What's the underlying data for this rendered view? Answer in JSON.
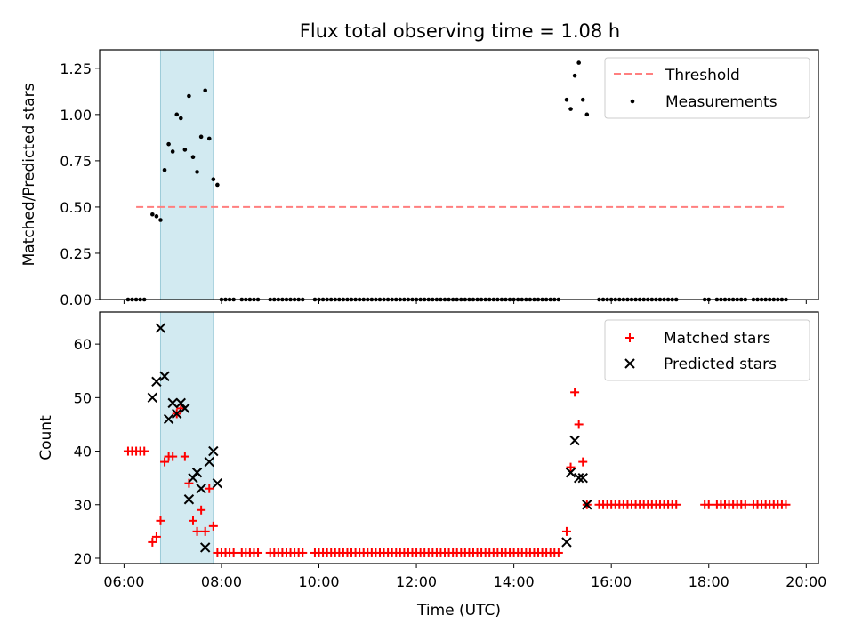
{
  "title": "Flux total observing time = 1.08 h",
  "chart_data": [
    {
      "type": "scatter",
      "ylabel": "Matched/Predicted stars",
      "xlim": [
        "05:30",
        "20:15"
      ],
      "ylim": [
        0,
        1.35
      ],
      "yticks": [
        "0.00",
        "0.25",
        "0.50",
        "0.75",
        "1.00",
        "1.25"
      ],
      "highlight_span": [
        "06:45",
        "07:50"
      ],
      "grid": false,
      "legend": "top-right",
      "threshold": {
        "name": "Threshold",
        "value": 0.5,
        "x_range": [
          "06:15",
          "19:35"
        ],
        "color": "#ff7f7f"
      },
      "series": [
        {
          "name": "Measurements",
          "color": "#000000",
          "points": [
            [
              "06:05",
              0
            ],
            [
              "06:10",
              0
            ],
            [
              "06:15",
              0
            ],
            [
              "06:20",
              0
            ],
            [
              "06:25",
              0
            ],
            [
              "06:35",
              0.46
            ],
            [
              "06:40",
              0.45
            ],
            [
              "06:45",
              0.43
            ],
            [
              "06:50",
              0.7
            ],
            [
              "06:55",
              0.84
            ],
            [
              "07:00",
              0.8
            ],
            [
              "07:05",
              1.0
            ],
            [
              "07:10",
              0.98
            ],
            [
              "07:15",
              0.81
            ],
            [
              "07:20",
              1.1
            ],
            [
              "07:25",
              0.77
            ],
            [
              "07:30",
              0.69
            ],
            [
              "07:35",
              0.88
            ],
            [
              "07:40",
              1.13
            ],
            [
              "07:45",
              0.87
            ],
            [
              "07:50",
              0.65
            ],
            [
              "07:55",
              0.62
            ],
            [
              "15:05",
              1.08
            ],
            [
              "15:10",
              1.03
            ],
            [
              "15:15",
              1.21
            ],
            [
              "15:20",
              1.28
            ],
            [
              "15:25",
              1.08
            ],
            [
              "15:30",
              1.0
            ]
          ],
          "zero_ranges": [
            [
              "08:00",
              "08:15"
            ],
            [
              "08:25",
              "08:45"
            ],
            [
              "09:00",
              "09:40"
            ],
            [
              "09:55",
              "14:55"
            ],
            [
              "15:45",
              "17:00"
            ],
            [
              "17:05",
              "17:20"
            ],
            [
              "17:55",
              "18:00"
            ],
            [
              "18:10",
              "18:45"
            ],
            [
              "18:55",
              "19:35"
            ]
          ]
        }
      ]
    },
    {
      "type": "scatter",
      "xlabel": "Time (UTC)",
      "ylabel": "Count",
      "xlim": [
        "05:30",
        "20:15"
      ],
      "ylim": [
        19,
        66
      ],
      "xticks": [
        "06:00",
        "08:00",
        "10:00",
        "12:00",
        "14:00",
        "16:00",
        "18:00",
        "20:00"
      ],
      "yticks": [
        "20",
        "30",
        "40",
        "50",
        "60"
      ],
      "highlight_span": [
        "06:45",
        "07:50"
      ],
      "grid": false,
      "legend": "top-right",
      "series": [
        {
          "name": "Matched stars",
          "color": "#ff0000",
          "marker": "+",
          "points": [
            [
              "06:05",
              40
            ],
            [
              "06:10",
              40
            ],
            [
              "06:15",
              40
            ],
            [
              "06:20",
              40
            ],
            [
              "06:25",
              40
            ],
            [
              "06:35",
              23
            ],
            [
              "06:40",
              24
            ],
            [
              "06:45",
              27
            ],
            [
              "06:50",
              38
            ],
            [
              "06:55",
              39
            ],
            [
              "07:00",
              39
            ],
            [
              "07:05",
              47
            ],
            [
              "07:10",
              48
            ],
            [
              "07:15",
              39
            ],
            [
              "07:20",
              34
            ],
            [
              "07:25",
              27
            ],
            [
              "07:30",
              25
            ],
            [
              "07:35",
              29
            ],
            [
              "07:40",
              25
            ],
            [
              "07:45",
              33
            ],
            [
              "07:50",
              26
            ],
            [
              "07:55",
              21
            ],
            [
              "15:05",
              25
            ],
            [
              "15:10",
              37
            ],
            [
              "15:15",
              51
            ],
            [
              "15:20",
              45
            ],
            [
              "15:25",
              38
            ],
            [
              "15:30",
              30
            ]
          ],
          "flat_ranges": [
            {
              "from": "08:00",
              "to": "08:15",
              "value": 21
            },
            {
              "from": "08:25",
              "to": "08:45",
              "value": 21
            },
            {
              "from": "09:00",
              "to": "09:40",
              "value": 21
            },
            {
              "from": "09:55",
              "to": "14:55",
              "value": 21
            },
            {
              "from": "15:45",
              "to": "17:00",
              "value": 30
            },
            {
              "from": "17:05",
              "to": "17:20",
              "value": 30
            },
            {
              "from": "17:55",
              "to": "18:00",
              "value": 30
            },
            {
              "from": "18:10",
              "to": "18:45",
              "value": 30
            },
            {
              "from": "18:55",
              "to": "19:35",
              "value": 30
            }
          ]
        },
        {
          "name": "Predicted stars",
          "color": "#000000",
          "marker": "x",
          "points": [
            [
              "06:35",
              50
            ],
            [
              "06:40",
              53
            ],
            [
              "06:45",
              63
            ],
            [
              "06:50",
              54
            ],
            [
              "06:55",
              46
            ],
            [
              "07:00",
              49
            ],
            [
              "07:05",
              47
            ],
            [
              "07:10",
              49
            ],
            [
              "07:15",
              48
            ],
            [
              "07:20",
              31
            ],
            [
              "07:25",
              35
            ],
            [
              "07:30",
              36
            ],
            [
              "07:35",
              33
            ],
            [
              "07:40",
              22
            ],
            [
              "07:45",
              38
            ],
            [
              "07:50",
              40
            ],
            [
              "07:55",
              34
            ],
            [
              "15:05",
              23
            ],
            [
              "15:10",
              36
            ],
            [
              "15:15",
              42
            ],
            [
              "15:20",
              35
            ],
            [
              "15:25",
              35
            ],
            [
              "15:30",
              30
            ]
          ]
        }
      ]
    }
  ]
}
